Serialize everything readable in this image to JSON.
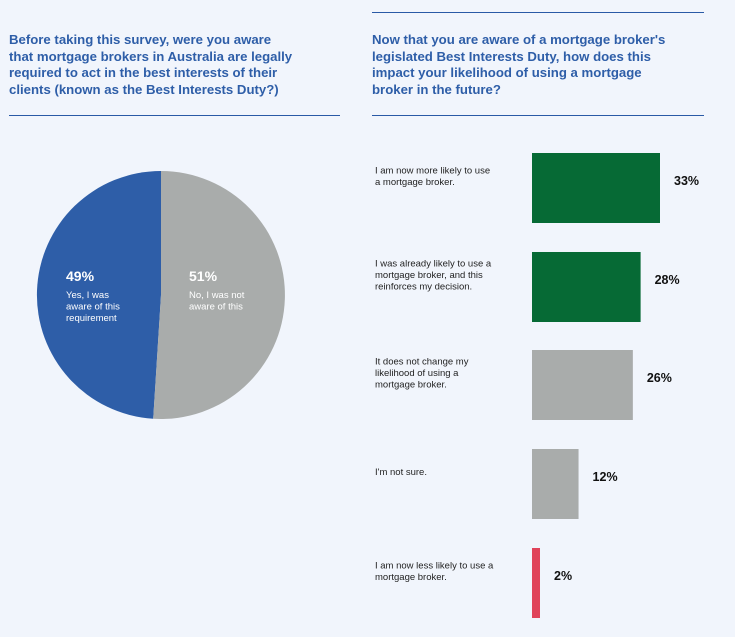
{
  "left_question": {
    "lines": [
      "Before taking this survey, were you aware",
      "that mortgage brokers in Australia are legally",
      "required to act in the best interests of their",
      "clients (known as the Best Interests Duty?)"
    ]
  },
  "right_question": {
    "lines": [
      "Now that you are aware of a mortgage broker's",
      "legislated Best Interests Duty, how does this",
      "impact your likelihood of using a mortgage",
      "broker in the future?"
    ]
  },
  "colors": {
    "blue": "#2e5ea8",
    "grey": "#a9acab",
    "green": "#066a35",
    "red": "#e0435a"
  },
  "chart_data": [
    {
      "type": "pie",
      "slices": [
        {
          "value": 49,
          "percent_label": "49%",
          "label_lines": [
            "Yes, I was",
            "aware of this",
            "requirement"
          ],
          "color": "#2e5ea8"
        },
        {
          "value": 51,
          "percent_label": "51%",
          "label_lines": [
            "No, I was not",
            "aware of this"
          ],
          "color": "#a9acab"
        }
      ]
    },
    {
      "type": "bar",
      "orientation": "horizontal",
      "xlim": [
        0,
        100
      ],
      "bars": [
        {
          "label_lines": [
            "I am now more likely to use",
            "a mortgage broker."
          ],
          "value": 33,
          "value_label": "33%",
          "color": "#066a35"
        },
        {
          "label_lines": [
            "I was already likely to use a",
            "mortgage broker, and this",
            "reinforces my decision."
          ],
          "value": 28,
          "value_label": "28%",
          "color": "#066a35"
        },
        {
          "label_lines": [
            "It does not change my",
            "likelihood of using a",
            "mortgage broker."
          ],
          "value": 26,
          "value_label": "26%",
          "color": "#a9acab"
        },
        {
          "label_lines": [
            "I'm not sure."
          ],
          "value": 12,
          "value_label": "12%",
          "color": "#a9acab"
        },
        {
          "label_lines": [
            "I am now less likely to use a",
            "mortgage broker."
          ],
          "value": 2,
          "value_label": "2%",
          "color": "#e0435a"
        }
      ]
    }
  ]
}
